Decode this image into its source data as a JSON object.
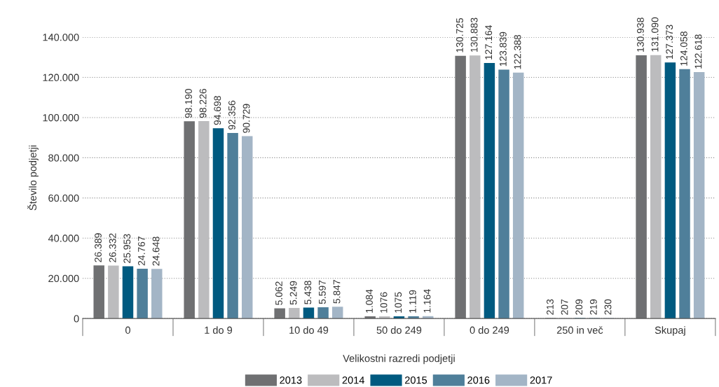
{
  "chart_data": {
    "type": "bar",
    "xlabel": "Velikostni razredi podjetji",
    "ylabel": "Število podjetji",
    "categories": [
      "0",
      "1 do 9",
      "10 do 49",
      "50 do 249",
      "0 do 249",
      "250 in več",
      "Skupaj"
    ],
    "series": [
      {
        "name": "2013",
        "color": "#6f7072",
        "values": [
          26389,
          98190,
          5062,
          1084,
          130725,
          213,
          130938
        ],
        "value_labels": [
          "26.389",
          "98.190",
          "5.062",
          "1.084",
          "130.725",
          "213",
          "130.938"
        ]
      },
      {
        "name": "2014",
        "color": "#bcbcbe",
        "values": [
          26332,
          98226,
          5249,
          1076,
          130883,
          207,
          131090
        ],
        "value_labels": [
          "26.332",
          "98.226",
          "5.249",
          "1076",
          "130.883",
          "207",
          "131.090"
        ]
      },
      {
        "name": "2015",
        "color": "#005a80",
        "values": [
          25953,
          94698,
          5438,
          1075,
          127164,
          209,
          127373
        ],
        "value_labels": [
          "25.953",
          "94.698",
          "5.438",
          "1075",
          "127.164",
          "209",
          "127.373"
        ]
      },
      {
        "name": "2016",
        "color": "#4f7f9a",
        "values": [
          24767,
          92356,
          5597,
          1119,
          123839,
          219,
          124058
        ],
        "value_labels": [
          "24.767",
          "92.356",
          "5.597",
          "1.119",
          "123.839",
          "219",
          "124.058"
        ]
      },
      {
        "name": "2017",
        "color": "#a3b5c6",
        "values": [
          24648,
          90729,
          5847,
          1164,
          122388,
          230,
          122618
        ],
        "value_labels": [
          "24.648",
          "90.729",
          "5.847",
          "1.164",
          "122.388",
          "230",
          "122.618"
        ]
      }
    ],
    "ylim": [
      0,
      140000
    ],
    "yticks": [
      0,
      {
        "value": 20000,
        "label": "20.000"
      },
      {
        "value": 40000,
        "label": "40.000"
      },
      {
        "value": 60000,
        "label": "60.000"
      },
      {
        "value": 80000,
        "label": "80.000"
      },
      {
        "value": 100000,
        "label": "100.000"
      },
      {
        "value": 120000,
        "label": "120.000"
      },
      {
        "value": 140000,
        "label": "140.000"
      }
    ],
    "grid": "y",
    "legend": "bottom"
  }
}
